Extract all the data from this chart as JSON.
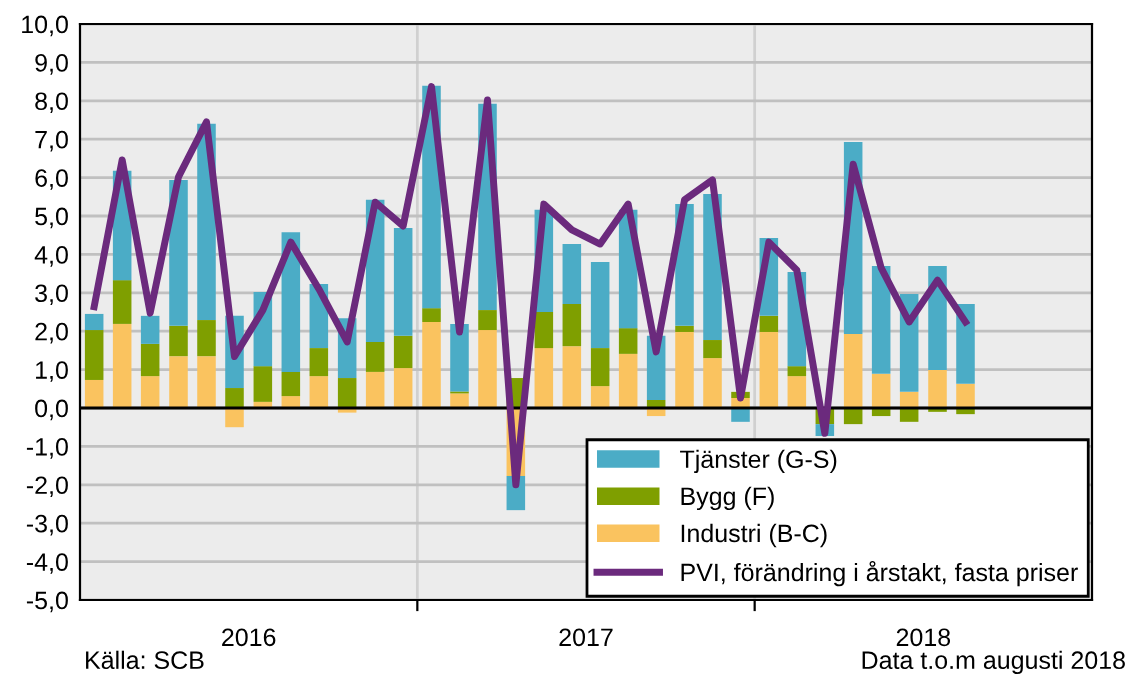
{
  "chart_data": {
    "type": "bar",
    "stacked": true,
    "x": [
      2016.042,
      2016.125,
      2016.208,
      2016.292,
      2016.375,
      2016.458,
      2016.542,
      2016.625,
      2016.708,
      2016.792,
      2016.875,
      2016.958,
      2017.042,
      2017.125,
      2017.208,
      2017.292,
      2017.375,
      2017.458,
      2017.542,
      2017.625,
      2017.708,
      2017.792,
      2017.875,
      2017.958,
      2018.042,
      2018.125,
      2018.208,
      2018.292,
      2018.375,
      2018.458,
      2018.542,
      2018.625
    ],
    "series": [
      {
        "name": "Industri (B-C)",
        "color": "#fac35f",
        "values": [
          0.73,
          2.19,
          0.83,
          1.35,
          1.35,
          -0.5,
          0.16,
          0.31,
          0.83,
          -0.12,
          0.94,
          1.04,
          2.24,
          0.38,
          2.03,
          -1.77,
          1.56,
          1.61,
          0.57,
          1.41,
          -0.21,
          1.98,
          1.3,
          0.26,
          1.98,
          0.83,
          0,
          1.93,
          0.89,
          0.42,
          0.99,
          0.63
        ]
      },
      {
        "name": "Bygg (F)",
        "color": "#7f9f00",
        "values": [
          1.3,
          1.14,
          0.84,
          0.79,
          0.94,
          0.52,
          0.93,
          0.63,
          0.73,
          0.78,
          0.78,
          0.84,
          0.36,
          0.05,
          0.52,
          0.78,
          0.94,
          1.1,
          0.99,
          0.67,
          0.21,
          0.16,
          0.47,
          0.16,
          0.42,
          0.26,
          -0.42,
          -0.42,
          -0.21,
          -0.36,
          -0.1,
          -0.16
        ]
      },
      {
        "name": "Tjänster (G-S)",
        "color": "#4bacc6",
        "values": [
          0.42,
          2.85,
          0.73,
          3.8,
          5.11,
          1.88,
          1.93,
          3.64,
          1.67,
          1.56,
          3.7,
          2.81,
          5.79,
          1.76,
          5.37,
          -0.89,
          2.66,
          1.56,
          2.24,
          3.08,
          1.67,
          3.17,
          3.8,
          -0.36,
          2.03,
          2.45,
          -0.31,
          5.0,
          2.81,
          2.55,
          2.71,
          2.08
        ]
      },
      {
        "name": "PVI, förändring i årstakt, fasta priser",
        "type": "line",
        "color": "#6b2a7d",
        "values": [
          2.64,
          6.46,
          2.47,
          6.02,
          7.45,
          1.34,
          2.55,
          4.32,
          3.1,
          1.72,
          5.36,
          4.74,
          8.37,
          1.98,
          8.02,
          -2.0,
          5.31,
          4.64,
          4.27,
          5.31,
          1.46,
          5.42,
          5.94,
          0.26,
          4.32,
          3.59,
          -0.66,
          6.35,
          3.65,
          2.24,
          3.33,
          2.24
        ]
      }
    ],
    "xlim": [
      2016,
      2019
    ],
    "xticks": [
      {
        "value": 2016.5,
        "label": "2016"
      },
      {
        "value": 2017,
        "label": null
      },
      {
        "value": 2017.5,
        "label": "2017"
      },
      {
        "value": 2018,
        "label": null
      },
      {
        "value": 2018.5,
        "label": "2018"
      }
    ],
    "ylim": [
      -5,
      10
    ],
    "yticks": [
      {
        "value": -5,
        "label": "-5,0"
      },
      {
        "value": -4,
        "label": "-4,0"
      },
      {
        "value": -3,
        "label": "-3,0"
      },
      {
        "value": -2,
        "label": "-2,0"
      },
      {
        "value": -1,
        "label": "-1,0"
      },
      {
        "value": 0,
        "label": "0,0"
      },
      {
        "value": 1,
        "label": "1,0"
      },
      {
        "value": 2,
        "label": "2,0"
      },
      {
        "value": 3,
        "label": "3,0"
      },
      {
        "value": 4,
        "label": "4,0"
      },
      {
        "value": 5,
        "label": "5,0"
      },
      {
        "value": 6,
        "label": "6,0"
      },
      {
        "value": 7,
        "label": "7,0"
      },
      {
        "value": 8,
        "label": "8,0"
      },
      {
        "value": 9,
        "label": "9,0"
      },
      {
        "value": 10,
        "label": "10,0"
      }
    ],
    "ref_lines": [
      {
        "axis": "y",
        "value": 0,
        "color": "#000000"
      }
    ],
    "grid": true,
    "legend": "bottom right",
    "marker": "none",
    "line_style": "solid",
    "annotations": [
      "Källa: SCB",
      "Data t.o.m augusti 2018"
    ]
  }
}
